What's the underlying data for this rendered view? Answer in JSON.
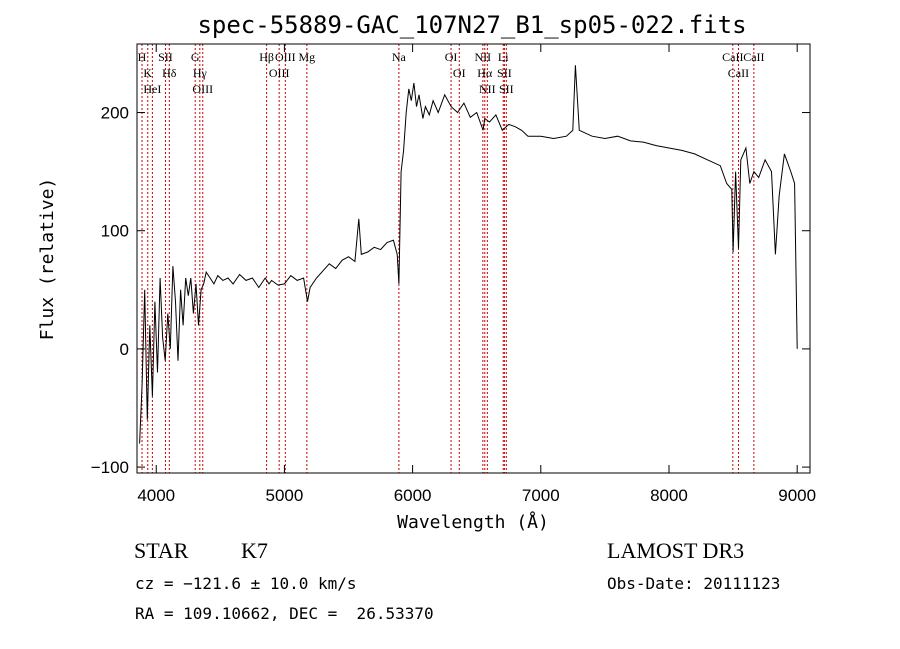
{
  "chart_data": {
    "type": "line",
    "title": "spec-55889-GAC_107N27_B1_sp05-022.fits",
    "xlabel": "Wavelength (Å)",
    "ylabel": "Flux (relative)",
    "xlim": [
      3850,
      9100
    ],
    "ylim": [
      -105,
      258
    ],
    "xticks": [
      4000,
      5000,
      6000,
      7000,
      8000,
      9000
    ],
    "yticks": [
      -100,
      0,
      100,
      200
    ],
    "grid": false,
    "line_color": "#000000",
    "marker_color": "#cc0000",
    "series": [
      {
        "x": [
          3870,
          3890,
          3910,
          3930,
          3950,
          3970,
          3990,
          4010,
          4030,
          4050,
          4070,
          4090,
          4110,
          4130,
          4150,
          4170,
          4190,
          4210,
          4230,
          4250,
          4270,
          4290,
          4310,
          4330,
          4350,
          4370,
          4390,
          4420,
          4450,
          4480,
          4520,
          4560,
          4600,
          4650,
          4700,
          4750,
          4800,
          4850,
          4880,
          4900,
          4950,
          5000,
          5050,
          5100,
          5150,
          5180,
          5200,
          5250,
          5300,
          5350,
          5400,
          5450,
          5500,
          5550,
          5580,
          5600,
          5650,
          5700,
          5750,
          5800,
          5850,
          5880,
          5893,
          5910,
          5930,
          5950,
          5970,
          5990,
          6010,
          6030,
          6050,
          6080,
          6100,
          6130,
          6160,
          6200,
          6250,
          6300,
          6350,
          6400,
          6450,
          6500,
          6550,
          6563,
          6600,
          6650,
          6700,
          6750,
          6800,
          6850,
          6900,
          7000,
          7100,
          7200,
          7250,
          7270,
          7300,
          7400,
          7500,
          7600,
          7700,
          7800,
          7900,
          8000,
          8100,
          8200,
          8300,
          8400,
          8450,
          8490,
          8500,
          8520,
          8542,
          8560,
          8600,
          8630,
          8662,
          8700,
          8750,
          8800,
          8830,
          8860,
          8900,
          8950,
          8980,
          9000
        ],
        "y": [
          -80,
          -30,
          50,
          -60,
          20,
          -40,
          40,
          -20,
          60,
          10,
          -10,
          30,
          0,
          70,
          40,
          -10,
          50,
          20,
          60,
          45,
          60,
          30,
          55,
          20,
          50,
          55,
          65,
          60,
          55,
          62,
          58,
          60,
          55,
          63,
          58,
          60,
          52,
          60,
          55,
          58,
          54,
          55,
          62,
          58,
          60,
          40,
          52,
          60,
          66,
          72,
          68,
          75,
          78,
          74,
          110,
          80,
          82,
          86,
          84,
          90,
          92,
          80,
          55,
          150,
          168,
          200,
          220,
          210,
          225,
          205,
          215,
          195,
          205,
          198,
          210,
          200,
          215,
          205,
          200,
          208,
          196,
          200,
          185,
          195,
          192,
          198,
          185,
          190,
          188,
          185,
          180,
          180,
          178,
          180,
          185,
          240,
          185,
          180,
          178,
          180,
          176,
          175,
          172,
          170,
          168,
          165,
          160,
          155,
          140,
          135,
          82,
          150,
          85,
          160,
          170,
          140,
          150,
          145,
          160,
          150,
          80,
          130,
          165,
          150,
          140,
          0
        ]
      }
    ],
    "spectral_lines": [
      {
        "x": 3889,
        "labels": [
          "H"
        ]
      },
      {
        "x": 3934,
        "labels": [
          "K"
        ]
      },
      {
        "x": 3970,
        "labels": [
          "HeI"
        ]
      },
      {
        "x": 4072,
        "labels": [
          "SII"
        ]
      },
      {
        "x": 4102,
        "labels": [
          "Hδ"
        ]
      },
      {
        "x": 4304,
        "labels": [
          "G"
        ]
      },
      {
        "x": 4340,
        "labels": [
          "Hγ"
        ]
      },
      {
        "x": 4363,
        "labels": [
          "OIII"
        ]
      },
      {
        "x": 4861,
        "labels": [
          "Hβ"
        ]
      },
      {
        "x": 4959,
        "labels": [
          "OIII"
        ]
      },
      {
        "x": 5007,
        "labels": [
          "OIII"
        ]
      },
      {
        "x": 5175,
        "labels": [
          "Mg"
        ]
      },
      {
        "x": 5893,
        "labels": [
          "Na"
        ]
      },
      {
        "x": 6300,
        "labels": [
          "OI"
        ]
      },
      {
        "x": 6364,
        "labels": [
          "OI"
        ]
      },
      {
        "x": 6548,
        "labels": [
          "NII"
        ]
      },
      {
        "x": 6563,
        "labels": [
          "Hα"
        ]
      },
      {
        "x": 6583,
        "labels": [
          "NII"
        ]
      },
      {
        "x": 6707,
        "labels": [
          "Li"
        ]
      },
      {
        "x": 6716,
        "labels": [
          "SII"
        ]
      },
      {
        "x": 6731,
        "labels": [
          "SII"
        ]
      },
      {
        "x": 8498,
        "labels": [
          "CaII"
        ]
      },
      {
        "x": 8542,
        "labels": [
          "CaII"
        ]
      },
      {
        "x": 8662,
        "labels": [
          "CaII"
        ]
      }
    ]
  },
  "info": {
    "object_class": "STAR",
    "subclass": "K7",
    "survey": "LAMOST DR3",
    "cz": "cz = −121.6 ± 10.0 km/s",
    "obs_date": "Obs-Date: 20111123",
    "coords": "RA = 109.10662, DEC =  26.53370"
  }
}
